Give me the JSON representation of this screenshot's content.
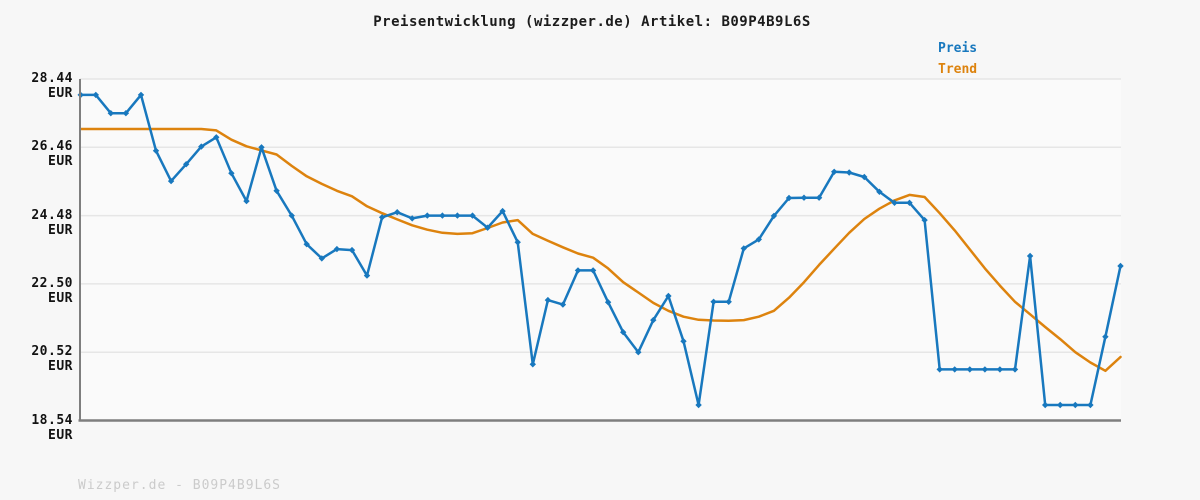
{
  "header": {
    "title": "Preisentwicklung (wizzper.de) Artikel: B09P4B9L6S"
  },
  "legend": {
    "items": [
      {
        "label": "Preis",
        "color": "#1878be"
      },
      {
        "label": "Trend",
        "color": "#dd830e"
      }
    ]
  },
  "footer": {
    "watermark": "Wizzper.de - B09P4B9L6S"
  },
  "colors": {
    "price_line": "#1878be",
    "trend_line": "#dd830e",
    "axis": "#7e7e7e",
    "gridline": "#e6e6e6",
    "plot_background": "#fafafa",
    "page_background": "#f7f7f7",
    "tick_text": "#121212",
    "watermark_text": "#cbcbcb"
  },
  "chart_data": {
    "type": "line",
    "title": "Preisentwicklung (wizzper.de) Artikel: B09P4B9L6S",
    "xlabel": "",
    "ylabel": "EUR",
    "ylim": [
      18.54,
      28.44
    ],
    "grid": true,
    "legend_position": "top-right",
    "x_axis_labels_visible": false,
    "y_ticks": [
      {
        "value": 28.44,
        "label": "28.44 EUR"
      },
      {
        "value": 26.46,
        "label": "26.46 EUR"
      },
      {
        "value": 24.48,
        "label": "24.48 EUR"
      },
      {
        "value": 22.5,
        "label": "22.50 EUR"
      },
      {
        "value": 20.52,
        "label": "20.52 EUR"
      },
      {
        "value": 18.54,
        "label": "18.54 EUR"
      }
    ],
    "series": [
      {
        "name": "Preis",
        "color": "#1878be",
        "markers": true,
        "values": [
          27.98,
          27.98,
          27.45,
          27.45,
          27.98,
          26.36,
          25.48,
          25.97,
          26.48,
          26.75,
          25.71,
          24.9,
          26.46,
          25.2,
          24.48,
          23.65,
          23.24,
          23.51,
          23.48,
          22.74,
          24.43,
          24.58,
          24.4,
          24.48,
          24.48,
          24.48,
          24.48,
          24.13,
          24.61,
          23.71,
          20.17,
          22.03,
          21.9,
          22.89,
          22.89,
          21.97,
          21.1,
          20.52,
          21.45,
          22.15,
          20.84,
          18.99,
          21.98,
          21.98,
          23.53,
          23.79,
          24.47,
          24.99,
          25.0,
          25.0,
          25.75,
          25.73,
          25.6,
          25.17,
          24.85,
          24.85,
          24.35,
          20.02,
          20.02,
          20.02,
          20.02,
          20.02,
          20.02,
          23.31,
          18.99,
          18.99,
          18.99,
          18.99,
          20.97,
          23.02
        ]
      },
      {
        "name": "Trend",
        "color": "#dd830e",
        "markers": false,
        "values": [
          26.99,
          26.99,
          26.99,
          26.99,
          26.99,
          26.99,
          26.99,
          26.99,
          26.99,
          26.95,
          26.68,
          26.49,
          26.37,
          26.25,
          25.92,
          25.62,
          25.4,
          25.2,
          25.04,
          24.75,
          24.55,
          24.37,
          24.2,
          24.07,
          23.98,
          23.95,
          23.97,
          24.12,
          24.28,
          24.35,
          23.95,
          23.75,
          23.56,
          23.38,
          23.26,
          22.95,
          22.55,
          22.25,
          21.95,
          21.72,
          21.55,
          21.46,
          21.44,
          21.43,
          21.45,
          21.55,
          21.72,
          22.1,
          22.55,
          23.05,
          23.52,
          23.98,
          24.38,
          24.68,
          24.92,
          25.08,
          25.02,
          24.55,
          24.05,
          23.5,
          22.95,
          22.45,
          21.98,
          21.62,
          21.25,
          20.9,
          20.52,
          20.22,
          19.98,
          20.38
        ]
      }
    ]
  }
}
